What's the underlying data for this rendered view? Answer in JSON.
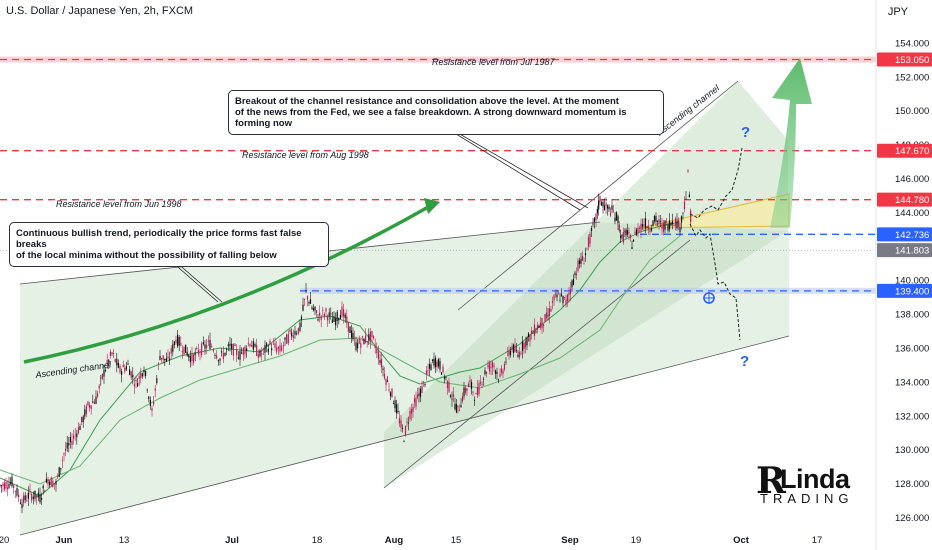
{
  "header": {
    "symbol": "U.S. Dollar / Japanese Yen, 2h, FXCM",
    "currency": "JPY"
  },
  "chart_data": {
    "type": "line",
    "title": "U.S. Dollar / Japanese Yen, 2h, FXCM",
    "x_ticks": [
      "20",
      "Jun",
      "13",
      "Jul",
      "18",
      "Aug",
      "15",
      "Sep",
      "19",
      "Oct",
      "17"
    ],
    "y_ticks": [
      126.0,
      128.0,
      130.0,
      132.0,
      134.0,
      136.0,
      138.0,
      140.0,
      142.0,
      144.0,
      146.0,
      148.0,
      150.0,
      152.0,
      154.0
    ],
    "ylim": [
      125.3,
      155.3
    ],
    "price_labels": [
      {
        "text": "153.050",
        "value": 153.05,
        "color": "#f23645"
      },
      {
        "text": "147.670",
        "value": 147.67,
        "color": "#f23645"
      },
      {
        "text": "144.780",
        "value": 144.78,
        "color": "#f23645"
      },
      {
        "text": "142.736",
        "value": 142.736,
        "color": "#2962ff"
      },
      {
        "text": "141.803",
        "value": 141.803,
        "color": "#787b86"
      },
      {
        "text": "139.400",
        "value": 139.4,
        "color": "#2962ff"
      }
    ],
    "horizontal_levels": [
      {
        "value": 153.05,
        "label": "Resistance level from Jul 1987",
        "color": "#f23645"
      },
      {
        "value": 147.67,
        "label": "Resistance level from Aug 1998",
        "color": "#f23645"
      },
      {
        "value": 144.78,
        "label": "Resistance level from Jun 1998",
        "color": "#f23645"
      },
      {
        "value": 142.736,
        "label": "",
        "color": "#2962ff"
      },
      {
        "value": 139.4,
        "label": "",
        "color": "#2962ff"
      }
    ],
    "channel_labels": [
      "Ascending channel",
      "Ascending channel"
    ],
    "annotations": [
      "Breakout of the channel resistance and consolidation above the level. At the moment\nof the news from the Fed, we see a false breakdown. A strong downward momentum is forming now",
      "Continuous bullish trend, periodically the price forms fast false breaks\nof the local minima without the possibility of falling below"
    ],
    "question_marks": [
      "?",
      "?"
    ],
    "price_path": [
      [
        0,
        127.9
      ],
      [
        12,
        128.1
      ],
      [
        22,
        126.9
      ],
      [
        30,
        127.4
      ],
      [
        40,
        127.2
      ],
      [
        48,
        128.3
      ],
      [
        56,
        128.0
      ],
      [
        64,
        129.8
      ],
      [
        72,
        130.6
      ],
      [
        80,
        131.4
      ],
      [
        88,
        132.6
      ],
      [
        96,
        133.0
      ],
      [
        104,
        134.6
      ],
      [
        112,
        135.7
      ],
      [
        120,
        134.7
      ],
      [
        128,
        135.0
      ],
      [
        136,
        133.9
      ],
      [
        144,
        134.9
      ],
      [
        152,
        132.2
      ],
      [
        160,
        135.6
      ],
      [
        168,
        135.2
      ],
      [
        176,
        136.6
      ],
      [
        184,
        136.0
      ],
      [
        192,
        135.4
      ],
      [
        200,
        135.9
      ],
      [
        210,
        136.3
      ],
      [
        220,
        135.4
      ],
      [
        230,
        136.1
      ],
      [
        240,
        135.6
      ],
      [
        250,
        136.4
      ],
      [
        260,
        135.6
      ],
      [
        270,
        136.2
      ],
      [
        280,
        135.9
      ],
      [
        290,
        136.8
      ],
      [
        300,
        137.2
      ],
      [
        306,
        139.3
      ],
      [
        312,
        138.4
      ],
      [
        318,
        137.9
      ],
      [
        326,
        138.1
      ],
      [
        334,
        137.6
      ],
      [
        342,
        138.2
      ],
      [
        350,
        137.1
      ],
      [
        356,
        136.2
      ],
      [
        364,
        136.5
      ],
      [
        372,
        136.7
      ],
      [
        380,
        135.4
      ],
      [
        386,
        134.2
      ],
      [
        392,
        133.3
      ],
      [
        398,
        132.1
      ],
      [
        404,
        130.8
      ],
      [
        410,
        132.2
      ],
      [
        416,
        132.9
      ],
      [
        422,
        133.6
      ],
      [
        428,
        134.6
      ],
      [
        434,
        135.3
      ],
      [
        440,
        135.0
      ],
      [
        446,
        134.2
      ],
      [
        452,
        133.2
      ],
      [
        458,
        132.3
      ],
      [
        464,
        133.4
      ],
      [
        470,
        133.9
      ],
      [
        476,
        133.1
      ],
      [
        482,
        134.2
      ],
      [
        488,
        134.9
      ],
      [
        494,
        135.0
      ],
      [
        500,
        134.2
      ],
      [
        506,
        135.3
      ],
      [
        512,
        136.1
      ],
      [
        518,
        135.6
      ],
      [
        524,
        136.3
      ],
      [
        530,
        136.7
      ],
      [
        536,
        137.2
      ],
      [
        542,
        137.5
      ],
      [
        548,
        137.9
      ],
      [
        554,
        138.9
      ],
      [
        560,
        139.1
      ],
      [
        566,
        138.7
      ],
      [
        572,
        139.8
      ],
      [
        578,
        140.9
      ],
      [
        584,
        141.3
      ],
      [
        590,
        142.5
      ],
      [
        596,
        143.7
      ],
      [
        600,
        144.8
      ],
      [
        606,
        144.3
      ],
      [
        612,
        144.1
      ],
      [
        618,
        143.6
      ],
      [
        622,
        142.4
      ],
      [
        626,
        142.9
      ],
      [
        632,
        142.2
      ],
      [
        638,
        143.1
      ],
      [
        644,
        143.4
      ],
      [
        650,
        143.2
      ],
      [
        656,
        143.6
      ],
      [
        662,
        143.2
      ],
      [
        668,
        143.3
      ],
      [
        674,
        143.6
      ],
      [
        680,
        143.2
      ],
      [
        686,
        145.0
      ],
      [
        688,
        146.2
      ],
      [
        692,
        142.6
      ]
    ]
  },
  "watermark": {
    "letter": "R",
    "word": "Linda",
    "tagline": "TRADING"
  },
  "colors": {
    "resistance": "#f23645",
    "support": "#2962ff",
    "channel_fill": "#c5dfc5",
    "trend_arrow": "#2e9e3e",
    "ma_line": "#4caf50",
    "candle_up": "#111111",
    "candle_down": "#c2185b"
  }
}
